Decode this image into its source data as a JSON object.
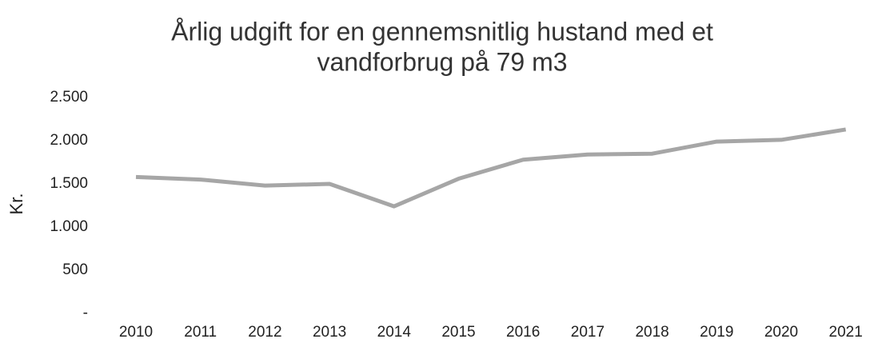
{
  "chart_data": {
    "type": "line",
    "title": [
      "Årlig udgift for en gennemsnitlig hustand med et",
      "vandforbrug på 79 m3"
    ],
    "y_label": "Kr.",
    "categories": [
      "2010",
      "2011",
      "2012",
      "2013",
      "2014",
      "2015",
      "2016",
      "2017",
      "2018",
      "2019",
      "2020",
      "2021"
    ],
    "values": [
      1580,
      1550,
      1480,
      1500,
      1240,
      1560,
      1780,
      1840,
      1850,
      1990,
      2010,
      2130
    ],
    "color": "#a6a6a6",
    "ylim": [
      0,
      2500
    ],
    "yticks": [
      {
        "value": 0,
        "label": "-"
      },
      {
        "value": 500,
        "label": "500"
      },
      {
        "value": 1000,
        "label": "1.000"
      },
      {
        "value": 1500,
        "label": "1.500"
      },
      {
        "value": 2000,
        "label": "2.000"
      },
      {
        "value": 2500,
        "label": "2.500"
      }
    ],
    "grid": false
  }
}
